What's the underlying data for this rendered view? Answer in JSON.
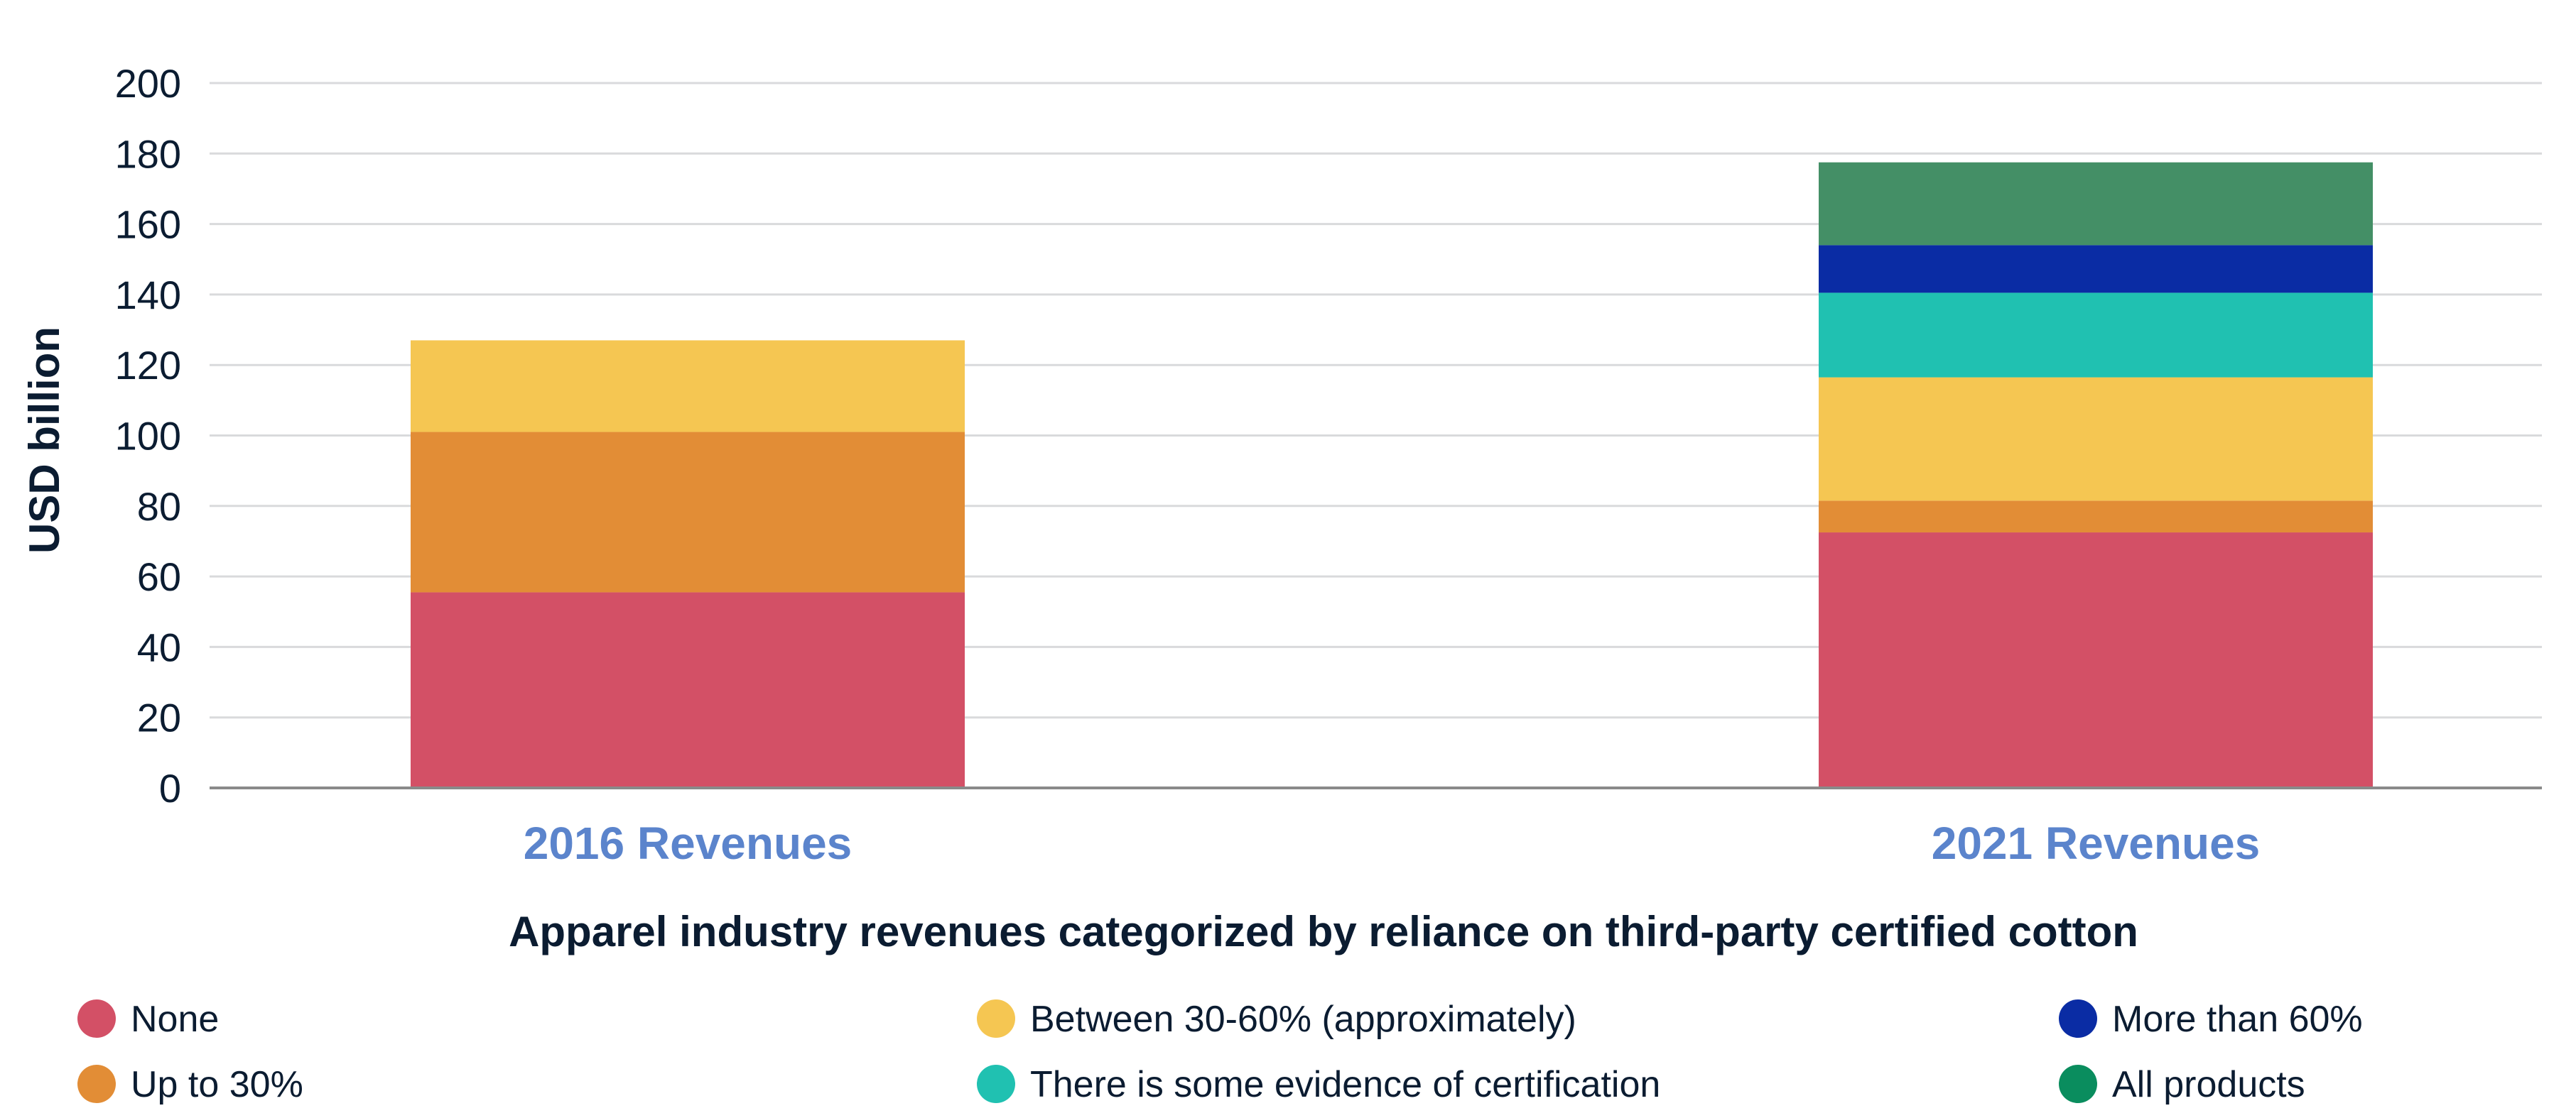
{
  "chart_data": {
    "type": "bar",
    "stacked": true,
    "categories": [
      "2016 Revenues",
      "2021 Revenues"
    ],
    "series": [
      {
        "name": "None",
        "values": [
          55.5,
          72.5
        ],
        "color": "#d35066"
      },
      {
        "name": "Up to 30%",
        "values": [
          45.5,
          9
        ],
        "color": "#e28d36"
      },
      {
        "name": "Between 30-60% (approximately)",
        "values": [
          26,
          35
        ],
        "color": "#f5c652"
      },
      {
        "name": "There is some evidence of certification",
        "values": [
          0,
          24
        ],
        "color": "#20c1b1"
      },
      {
        "name": "More than 60%",
        "values": [
          0,
          13.5
        ],
        "color": "#0a2ca4"
      },
      {
        "name": "All products",
        "values": [
          0,
          23.5
        ],
        "color": "#448f66"
      }
    ],
    "xlabel": "Apparel industry revenues categorized by reliance on third-party certified cotton",
    "ylabel": "USD billion",
    "ylim": [
      0,
      200
    ],
    "yticks": [
      "0",
      "20",
      "40",
      "60",
      "80",
      "100",
      "120",
      "140",
      "160",
      "180",
      "200"
    ],
    "grid": true,
    "legend_position": "bottom",
    "legend_dot_colors": [
      "#d35066",
      "#e28d36",
      "#f5c652",
      "#20c1b1",
      "#0a2ca4",
      "#0a8d5e"
    ]
  },
  "colors": {
    "category_label": "#5b84cc",
    "grid": "#d9dadc",
    "axis": "#8a8a8a",
    "text": "#0b1c31"
  }
}
